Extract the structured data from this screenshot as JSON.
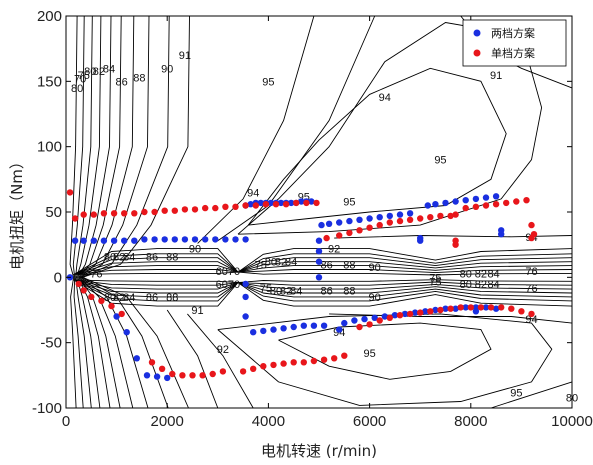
{
  "chart_data": {
    "type": "scatter",
    "xlabel": "电机转速 (r/min)",
    "ylabel": "电机扭矩（Nm）",
    "xlim": [
      0,
      10000
    ],
    "ylim": [
      -100,
      200
    ],
    "xticks": [
      "0",
      "2000",
      "4000",
      "6000",
      "8000",
      "10000"
    ],
    "yticks": [
      "200",
      "150",
      "100",
      "50",
      "0",
      "-50",
      "-100"
    ],
    "legend_position": "top-right",
    "colors": {
      "two_gear": "#1a2fe0",
      "single_gear": "#e8161b",
      "contour": "#000000"
    },
    "series": [
      {
        "name": "两档方案",
        "color": "#1a2fe0",
        "points": [
          [
            80,
            0
          ],
          [
            180,
            28
          ],
          [
            350,
            28
          ],
          [
            550,
            28
          ],
          [
            750,
            28
          ],
          [
            950,
            28
          ],
          [
            1150,
            28
          ],
          [
            1350,
            28
          ],
          [
            1550,
            29
          ],
          [
            1750,
            29
          ],
          [
            1950,
            29
          ],
          [
            2150,
            29
          ],
          [
            2350,
            29
          ],
          [
            2550,
            29
          ],
          [
            2750,
            29
          ],
          [
            2950,
            29
          ],
          [
            3150,
            29
          ],
          [
            3350,
            29
          ],
          [
            3550,
            29
          ],
          [
            3550,
            55
          ],
          [
            3650,
            56
          ],
          [
            3750,
            57
          ],
          [
            3850,
            57
          ],
          [
            3950,
            57
          ],
          [
            4050,
            57
          ],
          [
            4150,
            57
          ],
          [
            4250,
            57
          ],
          [
            4350,
            57
          ],
          [
            4450,
            57
          ],
          [
            4550,
            57
          ],
          [
            4650,
            58
          ],
          [
            4750,
            58
          ],
          [
            4850,
            58
          ],
          [
            5000,
            28
          ],
          [
            5000,
            20
          ],
          [
            5000,
            12
          ],
          [
            5000,
            0
          ],
          [
            5050,
            40
          ],
          [
            5200,
            41
          ],
          [
            5400,
            42
          ],
          [
            5600,
            43
          ],
          [
            5800,
            44
          ],
          [
            6000,
            45
          ],
          [
            6200,
            46
          ],
          [
            6400,
            47
          ],
          [
            6600,
            48
          ],
          [
            6800,
            49
          ],
          [
            7000,
            30
          ],
          [
            7000,
            28
          ],
          [
            7150,
            55
          ],
          [
            7300,
            56
          ],
          [
            7500,
            57
          ],
          [
            7700,
            58
          ],
          [
            7900,
            59
          ],
          [
            8100,
            60
          ],
          [
            8300,
            61
          ],
          [
            8500,
            62
          ],
          [
            8600,
            33
          ],
          [
            8600,
            36
          ],
          [
            1000,
            -30
          ],
          [
            1200,
            -42
          ],
          [
            1400,
            -62
          ],
          [
            1600,
            -75
          ],
          [
            1800,
            -76
          ],
          [
            2000,
            -77
          ],
          [
            3550,
            -5
          ],
          [
            3550,
            -15
          ],
          [
            3550,
            -30
          ],
          [
            3700,
            -42
          ],
          [
            3900,
            -41
          ],
          [
            4100,
            -40
          ],
          [
            4300,
            -39
          ],
          [
            4500,
            -38
          ],
          [
            4700,
            -37
          ],
          [
            4900,
            -37
          ],
          [
            5100,
            -37
          ],
          [
            5500,
            -35
          ],
          [
            5700,
            -33
          ],
          [
            5900,
            -32
          ],
          [
            6100,
            -31
          ],
          [
            6300,
            -30
          ],
          [
            6500,
            -29
          ],
          [
            6700,
            -28
          ],
          [
            6900,
            -27
          ],
          [
            7100,
            -26
          ],
          [
            7300,
            -25
          ],
          [
            7500,
            -24
          ],
          [
            7700,
            -24
          ],
          [
            7900,
            -23
          ],
          [
            8100,
            -23
          ],
          [
            8300,
            -23
          ],
          [
            8500,
            -24
          ],
          [
            8100,
            -26
          ],
          [
            5400,
            -40
          ]
        ]
      },
      {
        "name": "单档方案",
        "color": "#e8161b",
        "points": [
          [
            80,
            65
          ],
          [
            180,
            45
          ],
          [
            350,
            48
          ],
          [
            550,
            48
          ],
          [
            750,
            49
          ],
          [
            950,
            49
          ],
          [
            1150,
            49
          ],
          [
            1350,
            49
          ],
          [
            1550,
            50
          ],
          [
            1750,
            50
          ],
          [
            1950,
            51
          ],
          [
            2150,
            51
          ],
          [
            2350,
            52
          ],
          [
            2550,
            52
          ],
          [
            2750,
            53
          ],
          [
            2950,
            53
          ],
          [
            3150,
            54
          ],
          [
            3350,
            54
          ],
          [
            3550,
            55
          ],
          [
            3750,
            55
          ],
          [
            3950,
            56
          ],
          [
            4150,
            56
          ],
          [
            4350,
            56
          ],
          [
            4550,
            57
          ],
          [
            4750,
            57
          ],
          [
            4950,
            57
          ],
          [
            5150,
            30
          ],
          [
            5400,
            32
          ],
          [
            5600,
            34
          ],
          [
            5800,
            36
          ],
          [
            6000,
            38
          ],
          [
            6200,
            40
          ],
          [
            6400,
            42
          ],
          [
            6600,
            43
          ],
          [
            6800,
            44
          ],
          [
            7000,
            45
          ],
          [
            7200,
            46
          ],
          [
            7400,
            47
          ],
          [
            7600,
            47
          ],
          [
            7700,
            48
          ],
          [
            7900,
            53
          ],
          [
            8100,
            54
          ],
          [
            8300,
            55
          ],
          [
            8500,
            56
          ],
          [
            8700,
            57
          ],
          [
            8900,
            58
          ],
          [
            9100,
            59
          ],
          [
            7700,
            28
          ],
          [
            7700,
            25
          ],
          [
            9200,
            30
          ],
          [
            9250,
            33
          ],
          [
            9200,
            40
          ],
          [
            250,
            -5
          ],
          [
            350,
            -10
          ],
          [
            500,
            -15
          ],
          [
            700,
            -18
          ],
          [
            900,
            -22
          ],
          [
            1100,
            -28
          ],
          [
            1700,
            -65
          ],
          [
            1900,
            -70
          ],
          [
            2100,
            -74
          ],
          [
            2300,
            -75
          ],
          [
            2500,
            -75
          ],
          [
            2700,
            -75
          ],
          [
            2900,
            -74
          ],
          [
            3100,
            -72
          ],
          [
            3500,
            -72
          ],
          [
            3700,
            -70
          ],
          [
            3900,
            -68
          ],
          [
            4100,
            -67
          ],
          [
            4300,
            -66
          ],
          [
            4500,
            -65
          ],
          [
            4700,
            -65
          ],
          [
            4900,
            -64
          ],
          [
            5100,
            -63
          ],
          [
            5300,
            -62
          ],
          [
            5500,
            -60
          ],
          [
            5800,
            -38
          ],
          [
            6000,
            -36
          ],
          [
            6200,
            -33
          ],
          [
            6400,
            -31
          ],
          [
            6600,
            -29
          ],
          [
            6800,
            -28
          ],
          [
            7000,
            -27
          ],
          [
            7200,
            -26
          ],
          [
            7400,
            -25
          ],
          [
            7600,
            -24
          ],
          [
            7800,
            -23
          ],
          [
            8000,
            -23
          ],
          [
            8200,
            -23
          ],
          [
            8400,
            -23
          ],
          [
            8600,
            -23
          ],
          [
            8800,
            -24
          ],
          [
            9000,
            -26
          ],
          [
            9200,
            -28
          ]
        ]
      }
    ],
    "contour_labels": [
      {
        "text": "80",
        "x": 220,
        "y": 145
      },
      {
        "text": "70",
        "x": 280,
        "y": 152
      },
      {
        "text": "75",
        "x": 350,
        "y": 155
      },
      {
        "text": "80",
        "x": 480,
        "y": 158
      },
      {
        "text": "82",
        "x": 650,
        "y": 158
      },
      {
        "text": "84",
        "x": 850,
        "y": 160
      },
      {
        "text": "86",
        "x": 1100,
        "y": 150
      },
      {
        "text": "88",
        "x": 1450,
        "y": 153
      },
      {
        "text": "90",
        "x": 2000,
        "y": 160
      },
      {
        "text": "91",
        "x": 2350,
        "y": 170
      },
      {
        "text": "91",
        "x": 8500,
        "y": 155
      },
      {
        "text": "95",
        "x": 4000,
        "y": 150
      },
      {
        "text": "94",
        "x": 6300,
        "y": 138
      },
      {
        "text": "95",
        "x": 7400,
        "y": 90
      },
      {
        "text": "94",
        "x": 3700,
        "y": 65
      },
      {
        "text": "95",
        "x": 4700,
        "y": 62
      },
      {
        "text": "95",
        "x": 5600,
        "y": 58
      },
      {
        "text": "94",
        "x": 9200,
        "y": 31
      },
      {
        "text": "92",
        "x": 5300,
        "y": 22
      },
      {
        "text": "90",
        "x": 2550,
        "y": 22
      },
      {
        "text": "86",
        "x": 1700,
        "y": 16
      },
      {
        "text": "88",
        "x": 2100,
        "y": 16
      },
      {
        "text": "84",
        "x": 1250,
        "y": 16
      },
      {
        "text": "82",
        "x": 1050,
        "y": 16
      },
      {
        "text": "80",
        "x": 870,
        "y": 16
      },
      {
        "text": "76",
        "x": 600,
        "y": 3
      },
      {
        "text": "70",
        "x": 250,
        "y": 0
      },
      {
        "text": "6070",
        "x": 3200,
        "y": 5
      },
      {
        "text": "75",
        "x": 3850,
        "y": 10
      },
      {
        "text": "80",
        "x": 4050,
        "y": 12
      },
      {
        "text": "82",
        "x": 4250,
        "y": 12
      },
      {
        "text": "84",
        "x": 4450,
        "y": 12
      },
      {
        "text": "86",
        "x": 5150,
        "y": 10
      },
      {
        "text": "88",
        "x": 5600,
        "y": 10
      },
      {
        "text": "90",
        "x": 6100,
        "y": 8
      },
      {
        "text": "75",
        "x": 7300,
        "y": 0
      },
      {
        "text": "80",
        "x": 7900,
        "y": 3
      },
      {
        "text": "82",
        "x": 8200,
        "y": 3
      },
      {
        "text": "84",
        "x": 8450,
        "y": 3
      },
      {
        "text": "76",
        "x": 9200,
        "y": 5
      },
      {
        "text": "6070",
        "x": 3200,
        "y": -5
      },
      {
        "text": "75",
        "x": 3950,
        "y": -8
      },
      {
        "text": "80",
        "x": 4150,
        "y": -10
      },
      {
        "text": "82",
        "x": 4350,
        "y": -10
      },
      {
        "text": "84",
        "x": 4550,
        "y": -10
      },
      {
        "text": "86",
        "x": 1700,
        "y": -15
      },
      {
        "text": "88",
        "x": 2100,
        "y": -15
      },
      {
        "text": "84",
        "x": 1250,
        "y": -15
      },
      {
        "text": "82",
        "x": 1050,
        "y": -15
      },
      {
        "text": "80",
        "x": 870,
        "y": -15
      },
      {
        "text": "86",
        "x": 5150,
        "y": -10
      },
      {
        "text": "88",
        "x": 5600,
        "y": -10
      },
      {
        "text": "90",
        "x": 6100,
        "y": -15
      },
      {
        "text": "75",
        "x": 7300,
        "y": -3
      },
      {
        "text": "80",
        "x": 7900,
        "y": -5
      },
      {
        "text": "82",
        "x": 8200,
        "y": -5
      },
      {
        "text": "84",
        "x": 8450,
        "y": -5
      },
      {
        "text": "76",
        "x": 9200,
        "y": -8
      },
      {
        "text": "91",
        "x": 2600,
        "y": -25
      },
      {
        "text": "92",
        "x": 3100,
        "y": -55
      },
      {
        "text": "94",
        "x": 5400,
        "y": -42
      },
      {
        "text": "95",
        "x": 6000,
        "y": -58
      },
      {
        "text": "94",
        "x": 9200,
        "y": -32
      },
      {
        "text": "95",
        "x": 8900,
        "y": -88
      },
      {
        "text": "80",
        "x": 10000,
        "y": -92
      }
    ]
  }
}
